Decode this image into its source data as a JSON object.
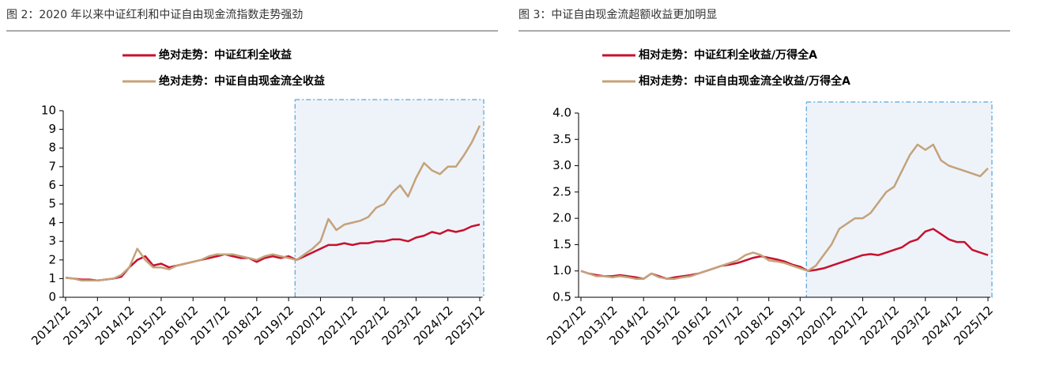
{
  "chart_data": [
    {
      "type": "line",
      "title": "图 2：2020 年以来中证红利和中证自由现金流指数走势强劲",
      "legend": "top",
      "categories": [
        "2012/12",
        null,
        null,
        null,
        "2013/12",
        null,
        null,
        null,
        "2014/12",
        null,
        null,
        null,
        "2015/12",
        null,
        null,
        null,
        "2016/12",
        null,
        null,
        null,
        "2017/12",
        null,
        null,
        null,
        "2018/12",
        null,
        null,
        null,
        "2019/12",
        null,
        null,
        null,
        "2020/12",
        null,
        null,
        null,
        "2021/12",
        null,
        null,
        null,
        "2022/12",
        null,
        null,
        null,
        "2023/12",
        null,
        null,
        null,
        "2024/12",
        null,
        null,
        null,
        "2025/12"
      ],
      "ylim": [
        0,
        10
      ],
      "yticks": [
        0,
        1,
        2,
        3,
        4,
        5,
        6,
        7,
        8,
        9,
        10
      ],
      "series": [
        {
          "name": "绝对走势：中证红利全收益",
          "color": "#c8102e",
          "values": [
            1.05,
            1.0,
            0.95,
            0.95,
            0.9,
            0.95,
            1.0,
            1.1,
            1.6,
            2.0,
            2.2,
            1.7,
            1.8,
            1.6,
            1.7,
            1.8,
            1.9,
            2.0,
            2.1,
            2.2,
            2.3,
            2.2,
            2.1,
            2.1,
            1.9,
            2.1,
            2.2,
            2.1,
            2.2,
            2.0,
            2.2,
            2.4,
            2.6,
            2.8,
            2.8,
            2.9,
            2.8,
            2.9,
            2.9,
            3.0,
            3.0,
            3.1,
            3.1,
            3.0,
            3.2,
            3.3,
            3.5,
            3.4,
            3.6,
            3.5,
            3.6,
            3.8,
            3.9
          ]
        },
        {
          "name": "绝对走势：中证自由现金流全收益",
          "color": "#c4a27a",
          "values": [
            1.05,
            1.0,
            0.9,
            0.9,
            0.9,
            0.95,
            1.0,
            1.2,
            1.6,
            2.6,
            2.0,
            1.6,
            1.6,
            1.5,
            1.7,
            1.8,
            1.9,
            2.0,
            2.2,
            2.3,
            2.3,
            2.3,
            2.2,
            2.1,
            2.0,
            2.2,
            2.3,
            2.2,
            2.1,
            2.0,
            2.3,
            2.6,
            3.0,
            4.2,
            3.6,
            3.9,
            4.0,
            4.1,
            4.3,
            4.8,
            5.0,
            5.6,
            6.0,
            5.4,
            6.4,
            7.2,
            6.8,
            6.6,
            7.0,
            7.0,
            7.6,
            8.3,
            9.2
          ]
        }
      ]
    },
    {
      "type": "line",
      "title": "图 3：中证自由现金流超额收益更加明显",
      "legend": "top",
      "categories": [
        "2012/12",
        null,
        null,
        null,
        "2013/12",
        null,
        null,
        null,
        "2014/12",
        null,
        null,
        null,
        "2015/12",
        null,
        null,
        null,
        "2016/12",
        null,
        null,
        null,
        "2017/12",
        null,
        null,
        null,
        "2018/12",
        null,
        null,
        null,
        "2019/12",
        null,
        null,
        null,
        "2020/12",
        null,
        null,
        null,
        "2021/12",
        null,
        null,
        null,
        "2022/12",
        null,
        null,
        null,
        "2023/12",
        null,
        null,
        null,
        "2024/12",
        null,
        null,
        null,
        "2025/12"
      ],
      "ylim": [
        0.5,
        4.0
      ],
      "yticks": [
        0.5,
        {
          "value": 1,
          "label": "1.0"
        },
        1.5,
        {
          "value": 2,
          "label": "2.0"
        },
        2.5,
        {
          "value": 3,
          "label": "3.0"
        },
        3.5,
        {
          "value": 4,
          "label": "4.0"
        }
      ],
      "series": [
        {
          "name": "相对走势：中证红利全收益/万得全A",
          "color": "#c8102e",
          "values": [
            1.0,
            0.95,
            0.92,
            0.9,
            0.9,
            0.92,
            0.9,
            0.88,
            0.85,
            0.95,
            0.9,
            0.85,
            0.88,
            0.9,
            0.92,
            0.95,
            1.0,
            1.05,
            1.1,
            1.12,
            1.15,
            1.2,
            1.25,
            1.28,
            1.25,
            1.22,
            1.18,
            1.12,
            1.08,
            1.0,
            1.02,
            1.05,
            1.1,
            1.15,
            1.2,
            1.25,
            1.3,
            1.32,
            1.3,
            1.35,
            1.4,
            1.45,
            1.55,
            1.6,
            1.75,
            1.8,
            1.7,
            1.6,
            1.55,
            1.55,
            1.4,
            1.35,
            1.3
          ]
        },
        {
          "name": "相对走势：中证自由现金流全收益/万得全A",
          "color": "#c4a27a",
          "values": [
            1.0,
            0.95,
            0.9,
            0.9,
            0.88,
            0.9,
            0.88,
            0.85,
            0.85,
            0.95,
            0.88,
            0.85,
            0.85,
            0.88,
            0.9,
            0.95,
            1.0,
            1.05,
            1.1,
            1.15,
            1.2,
            1.3,
            1.35,
            1.3,
            1.2,
            1.18,
            1.15,
            1.1,
            1.05,
            1.0,
            1.1,
            1.3,
            1.5,
            1.8,
            1.9,
            2.0,
            2.0,
            2.1,
            2.3,
            2.5,
            2.6,
            2.9,
            3.2,
            3.4,
            3.3,
            3.4,
            3.1,
            3.0,
            2.95,
            2.9,
            2.85,
            2.8,
            2.95
          ]
        }
      ]
    }
  ]
}
